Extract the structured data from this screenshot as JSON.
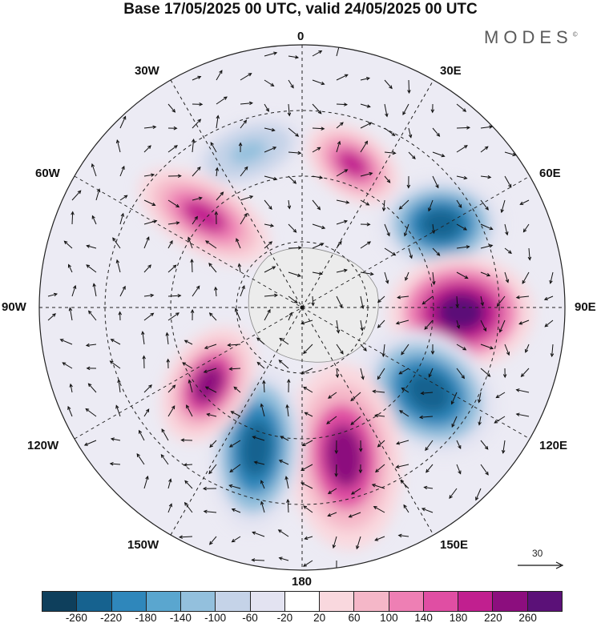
{
  "title": "Base 17/05/2025 00 UTC, valid 24/05/2025 00 UTC",
  "brand": {
    "text": "MODES",
    "mark": "©"
  },
  "longitude_labels": {
    "top": "0",
    "bottom": "180",
    "left": "90W",
    "right": "90E",
    "nw1": "30W",
    "nw2": "60W",
    "ne1": "30E",
    "ne2": "60E",
    "sw1": "120W",
    "sw2": "150W",
    "se1": "120E",
    "se2": "150E"
  },
  "reference_vector": {
    "value": "30"
  },
  "colorbar": {
    "colors": [
      "#0e3f5c",
      "#16628f",
      "#2f87bb",
      "#5aa6cf",
      "#93c0dd",
      "#c5d3e8",
      "#e3e3f1",
      "#ffffff",
      "#f9d8de",
      "#f5b7c8",
      "#ee7fb4",
      "#e04ea3",
      "#c11f8f",
      "#8c0e7e",
      "#5b1178"
    ],
    "tick_labels": [
      "-260",
      "-220",
      "-180",
      "-140",
      "-100",
      "-60",
      "-20",
      "20",
      "60",
      "100",
      "140",
      "180",
      "220",
      "260"
    ]
  },
  "chart_data": {
    "type": "heatmap",
    "projection": "south polar stereographic",
    "field": "height anomaly with wind vectors",
    "levels": [
      -260,
      -220,
      -180,
      -140,
      -100,
      -60,
      -20,
      20,
      60,
      100,
      140,
      180,
      220,
      260
    ],
    "anomaly_centers": [
      {
        "lon_label": "0-30W",
        "sign": "negative",
        "value": -140
      },
      {
        "lon_label": "0-30E",
        "sign": "positive",
        "value": 180
      },
      {
        "lon_label": "45W",
        "sign": "positive",
        "value": 180
      },
      {
        "lon_label": "60E",
        "sign": "negative",
        "value": -260
      },
      {
        "lon_label": "90E",
        "sign": "positive",
        "value": 260
      },
      {
        "lon_label": "120E",
        "sign": "negative",
        "value": -260
      },
      {
        "lon_label": "165E",
        "sign": "positive",
        "value": 220
      },
      {
        "lon_label": "165W",
        "sign": "negative",
        "value": -260
      },
      {
        "lon_label": "120W",
        "sign": "positive",
        "value": 220
      }
    ]
  }
}
